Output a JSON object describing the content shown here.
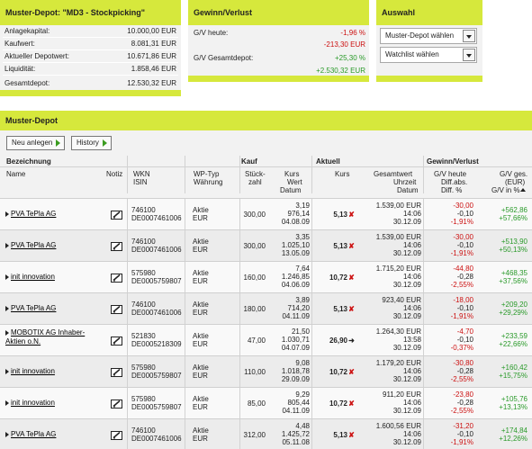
{
  "summary": {
    "title": "Muster-Depot: \"MD3 - Stockpicking\"",
    "rows": [
      {
        "label": "Anlagekapital:",
        "value": "10.000,00 EUR"
      },
      {
        "label": "Kaufwert:",
        "value": "8.081,31 EUR"
      },
      {
        "label": "Aktueller Depotwert:",
        "value": "10.671,86 EUR"
      },
      {
        "label": "Liquidität:",
        "value": "1.858,46 EUR"
      },
      {
        "label": "Gesamtdepot:",
        "value": "12.530,32 EUR"
      }
    ]
  },
  "gv": {
    "title": "Gewinn/Verlust",
    "today_label": "G/V heute:",
    "today_pct": "-1,96 %",
    "today_abs": "-213,30 EUR",
    "total_label": "G/V Gesamtdepot:",
    "total_pct": "+25,30 %",
    "total_abs": "+2.530,32 EUR"
  },
  "auswahl": {
    "title": "Auswahl",
    "depot_select": "Muster-Depot wählen",
    "watchlist_select": "Watchlist wählen"
  },
  "depot": {
    "title": "Muster-Depot",
    "new_button": "Neu anlegen",
    "history_button": "History",
    "headers": {
      "bezeichnung": "Bezeichnung",
      "name": "Name",
      "notiz": "Notiz",
      "wkn": "WKN",
      "isin": "ISIN",
      "wptyp": "WP-Typ",
      "waehrung": "Währung",
      "kauf": "Kauf",
      "stueck": "Stück-",
      "zahl": "zahl",
      "kurs": "Kurs",
      "wert": "Wert",
      "datum": "Datum",
      "aktuell": "Aktuell",
      "akt_kurs": "Kurs",
      "gesamtwert": "Gesamtwert",
      "uhrzeit": "Uhrzeit",
      "akt_datum": "Datum",
      "gv_section": "Gewinn/Verlust",
      "gv_heute": "G/V heute",
      "diff_abs": "Diff.abs.",
      "diff_pct": "Diff. %",
      "gv_ges": "G/V ges.",
      "eur": "(EUR)",
      "gv_in_pct": "G/V in %"
    },
    "rows": [
      {
        "name": "PVA TePla AG",
        "wkn": "746100",
        "isin": "DE0007461006",
        "typ": "Aktie",
        "cur": "EUR",
        "qty": "300,00",
        "buy_kurs": "3,19",
        "buy_wert": "976,14",
        "buy_datum": "04.08.09",
        "kurs": "5,13",
        "trend": "down",
        "gesamt": "1.539,00 EUR",
        "zeit": "14:06",
        "datum": "30.12.09",
        "gv_heute": "-30,00",
        "diff_abs": "-0,10",
        "diff_pct": "-1,91%",
        "gv_ges": "+562,86",
        "gv_pct": "+57,66%"
      },
      {
        "name": "PVA TePla AG",
        "wkn": "746100",
        "isin": "DE0007461006",
        "typ": "Aktie",
        "cur": "EUR",
        "qty": "300,00",
        "buy_kurs": "3,35",
        "buy_wert": "1.025,10",
        "buy_datum": "13.05.09",
        "kurs": "5,13",
        "trend": "down",
        "gesamt": "1.539,00 EUR",
        "zeit": "14:06",
        "datum": "30.12.09",
        "gv_heute": "-30,00",
        "diff_abs": "-0,10",
        "diff_pct": "-1,91%",
        "gv_ges": "+513,90",
        "gv_pct": "+50,13%"
      },
      {
        "name": "init innovation",
        "wkn": "575980",
        "isin": "DE0005759807",
        "typ": "Aktie",
        "cur": "EUR",
        "qty": "160,00",
        "buy_kurs": "7,64",
        "buy_wert": "1.246,85",
        "buy_datum": "04.06.09",
        "kurs": "10,72",
        "trend": "down",
        "gesamt": "1.715,20 EUR",
        "zeit": "14:06",
        "datum": "30.12.09",
        "gv_heute": "-44,80",
        "diff_abs": "-0,28",
        "diff_pct": "-2,55%",
        "gv_ges": "+468,35",
        "gv_pct": "+37,56%"
      },
      {
        "name": "PVA TePla AG",
        "wkn": "746100",
        "isin": "DE0007461006",
        "typ": "Aktie",
        "cur": "EUR",
        "qty": "180,00",
        "buy_kurs": "3,89",
        "buy_wert": "714,20",
        "buy_datum": "04.11.09",
        "kurs": "5,13",
        "trend": "down",
        "gesamt": "923,40 EUR",
        "zeit": "14:06",
        "datum": "30.12.09",
        "gv_heute": "-18,00",
        "diff_abs": "-0,10",
        "diff_pct": "-1,91%",
        "gv_ges": "+209,20",
        "gv_pct": "+29,29%"
      },
      {
        "name": "MOBOTIX AG Inhaber-Aktien o.N.",
        "wkn": "521830",
        "isin": "DE0005218309",
        "typ": "Aktie",
        "cur": "EUR",
        "qty": "47,00",
        "buy_kurs": "21,50",
        "buy_wert": "1.030,71",
        "buy_datum": "04.07.09",
        "kurs": "26,90",
        "trend": "right",
        "gesamt": "1.264,30 EUR",
        "zeit": "13:58",
        "datum": "30.12.09",
        "gv_heute": "-4,70",
        "diff_abs": "-0,10",
        "diff_pct": "-0,37%",
        "gv_ges": "+233,59",
        "gv_pct": "+22,66%"
      },
      {
        "name": "init innovation",
        "wkn": "575980",
        "isin": "DE0005759807",
        "typ": "Aktie",
        "cur": "EUR",
        "qty": "110,00",
        "buy_kurs": "9,08",
        "buy_wert": "1.018,78",
        "buy_datum": "29.09.09",
        "kurs": "10,72",
        "trend": "down",
        "gesamt": "1.179,20 EUR",
        "zeit": "14:06",
        "datum": "30.12.09",
        "gv_heute": "-30,80",
        "diff_abs": "-0,28",
        "diff_pct": "-2,55%",
        "gv_ges": "+160,42",
        "gv_pct": "+15,75%"
      },
      {
        "name": "init innovation",
        "wkn": "575980",
        "isin": "DE0005759807",
        "typ": "Aktie",
        "cur": "EUR",
        "qty": "85,00",
        "buy_kurs": "9,29",
        "buy_wert": "805,44",
        "buy_datum": "04.11.09",
        "kurs": "10,72",
        "trend": "down",
        "gesamt": "911,20 EUR",
        "zeit": "14:06",
        "datum": "30.12.09",
        "gv_heute": "-23,80",
        "diff_abs": "-0,28",
        "diff_pct": "-2,55%",
        "gv_ges": "+105,76",
        "gv_pct": "+13,13%"
      },
      {
        "name": "PVA TePla AG",
        "wkn": "746100",
        "isin": "DE0007461006",
        "typ": "Aktie",
        "cur": "EUR",
        "qty": "312,00",
        "buy_kurs": "4,48",
        "buy_wert": "1.425,72",
        "buy_datum": "05.11.08",
        "kurs": "5,13",
        "trend": "down",
        "gesamt": "1.600,56 EUR",
        "zeit": "14:06",
        "datum": "30.12.09",
        "gv_heute": "-31,20",
        "diff_abs": "-0,10",
        "diff_pct": "-1,91%",
        "gv_ges": "+174,84",
        "gv_pct": "+12,26%"
      }
    ]
  }
}
